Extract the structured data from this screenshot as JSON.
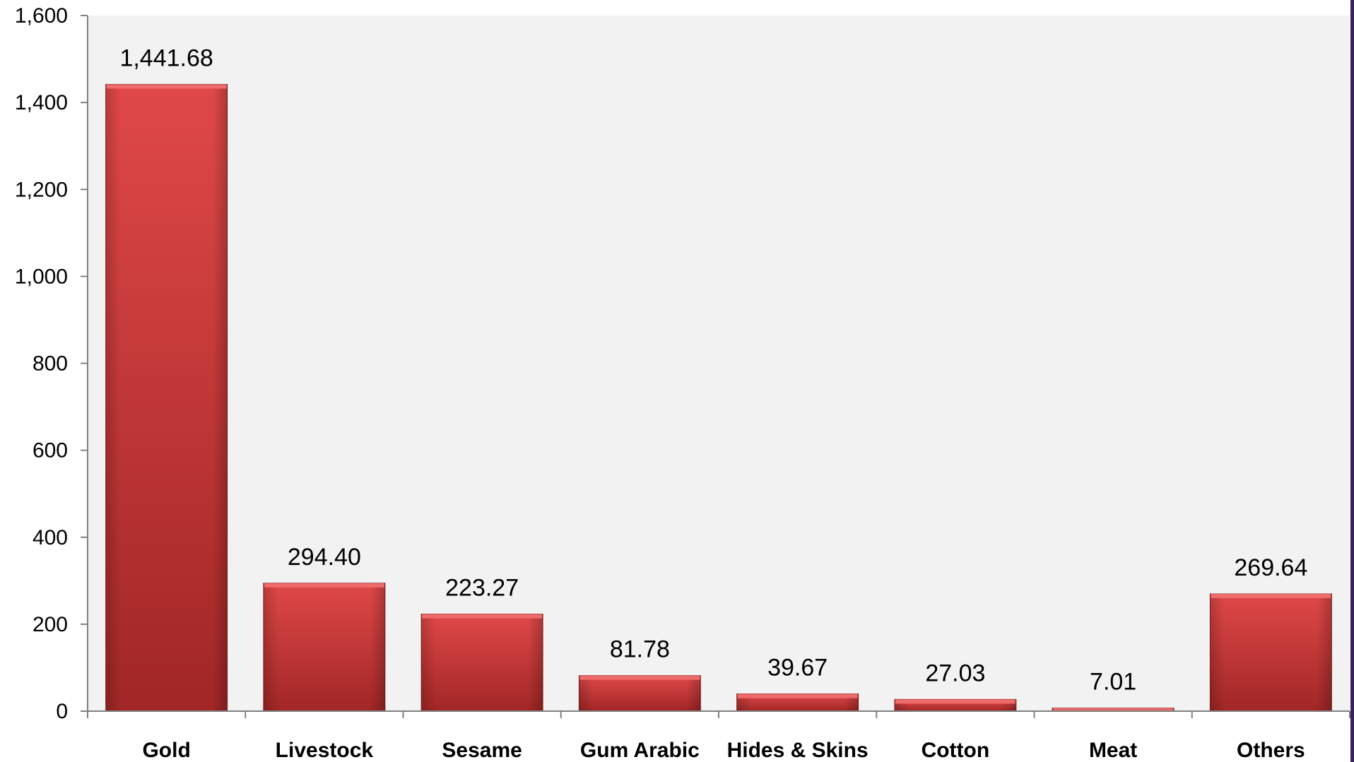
{
  "chart_data": {
    "type": "bar",
    "categories": [
      "Gold",
      "Livestock",
      "Sesame",
      "Gum Arabic",
      "Hides & Skins",
      "Cotton",
      "Meat",
      "Others"
    ],
    "values": [
      1441.68,
      294.4,
      223.27,
      81.78,
      39.67,
      27.03,
      7.01,
      269.64
    ],
    "data_labels": [
      "1,441.68",
      "294.40",
      "223.27",
      "81.78",
      "39.67",
      "27.03",
      "7.01",
      "269.64"
    ],
    "y_ticks": [
      0,
      200,
      400,
      600,
      800,
      1000,
      1200,
      1400,
      1600
    ],
    "y_tick_labels": [
      "0",
      "200",
      "400",
      "600",
      "800",
      "1,000",
      "1,200",
      "1,400",
      "1,600"
    ],
    "ylim": [
      0,
      1600
    ],
    "title": "",
    "xlabel": "",
    "ylabel": "",
    "grid": false,
    "legend": "none",
    "colors": {
      "bar_light": "#e04848",
      "bar_mid": "#d23a3a",
      "bar_dark": "#a12626",
      "bar_top": "#ef6b6b",
      "bar_edge": "#7d1a1a",
      "plot_background": "#f2f2f2",
      "axis": "#808080",
      "right_edge": "#3a2060"
    }
  }
}
